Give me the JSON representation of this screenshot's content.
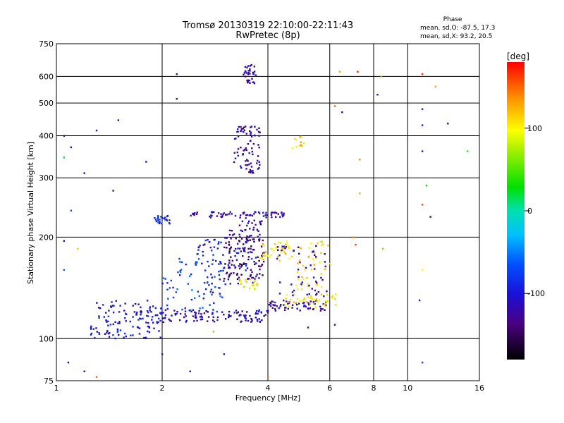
{
  "chart_data": {
    "type": "scatter",
    "title": "Tromsø 20130319 22:10:00-22:11:43",
    "subtitle": "RwPretec (8p)",
    "xlabel": "Frequency [MHz]",
    "ylabel": "Stationary phase Virtual Height [km]",
    "x_scale": "log",
    "y_scale": "log",
    "xlim": [
      1,
      16
    ],
    "ylim": [
      75,
      750
    ],
    "x_ticks": [
      1,
      2,
      4,
      6,
      8,
      10,
      16
    ],
    "x_tick_labels": [
      "1",
      "2",
      "4",
      "6",
      "8",
      "10",
      "16"
    ],
    "y_ticks": [
      75,
      100,
      200,
      300,
      400,
      500,
      600,
      750
    ],
    "y_tick_labels": [
      "75",
      "100",
      "200",
      "300",
      "400",
      "500",
      "600",
      "750"
    ],
    "grid": true,
    "stats": {
      "title": "Phase",
      "o_line": "mean, sd,O: -87.5, 17.3",
      "x_line": "mean, sd,X:  93.2, 20.5"
    },
    "colorbar": {
      "label": "[deg]",
      "range": [
        -180,
        180
      ],
      "ticks": [
        100,
        0,
        -100
      ],
      "tick_labels": [
        "100",
        "0",
        "-100"
      ]
    },
    "clusters": [
      {
        "f0": 1.25,
        "f1": 2.0,
        "h0": 100,
        "h1": 130,
        "phase": -100,
        "n": 130
      },
      {
        "f0": 2.0,
        "f1": 4.0,
        "h0": 112,
        "h1": 122,
        "phase": -115,
        "n": 110
      },
      {
        "f0": 4.0,
        "f1": 6.0,
        "h0": 121,
        "h1": 130,
        "phase": -115,
        "n": 60
      },
      {
        "f0": 4.4,
        "f1": 6.3,
        "h0": 124,
        "h1": 136,
        "phase": 105,
        "n": 40
      },
      {
        "f0": 2.0,
        "f1": 3.0,
        "h0": 120,
        "h1": 175,
        "phase": -75,
        "n": 70
      },
      {
        "f0": 2.5,
        "f1": 3.7,
        "h0": 145,
        "h1": 200,
        "phase": -95,
        "n": 80
      },
      {
        "f0": 3.0,
        "f1": 3.9,
        "h0": 150,
        "h1": 200,
        "phase": -140,
        "n": 100
      },
      {
        "f0": 3.1,
        "f1": 3.9,
        "h0": 195,
        "h1": 225,
        "phase": -125,
        "n": 40
      },
      {
        "f0": 3.8,
        "f1": 4.7,
        "h0": 170,
        "h1": 195,
        "phase": 110,
        "n": 40
      },
      {
        "f0": 3.3,
        "f1": 3.8,
        "h0": 140,
        "h1": 150,
        "phase": 100,
        "n": 20
      },
      {
        "f0": 4.8,
        "f1": 6.0,
        "h0": 140,
        "h1": 195,
        "phase": 105,
        "n": 40
      },
      {
        "f0": 4.2,
        "f1": 5.9,
        "h0": 133,
        "h1": 190,
        "phase": -120,
        "n": 50
      },
      {
        "f0": 1.9,
        "f1": 2.1,
        "h0": 218,
        "h1": 232,
        "phase": -90,
        "n": 25
      },
      {
        "f0": 2.3,
        "f1": 4.5,
        "h0": 228,
        "h1": 238,
        "phase": -115,
        "n": 70
      },
      {
        "f0": 3.2,
        "f1": 3.8,
        "h0": 310,
        "h1": 430,
        "phase": -120,
        "n": 80
      },
      {
        "f0": 3.4,
        "f1": 3.7,
        "h0": 570,
        "h1": 650,
        "phase": -120,
        "n": 35
      },
      {
        "f0": 4.6,
        "f1": 5.1,
        "h0": 360,
        "h1": 400,
        "phase": 110,
        "n": 12
      }
    ],
    "scatter_points": [
      {
        "x": 1.05,
        "y": 400,
        "phase": -110
      },
      {
        "x": 1.1,
        "y": 370,
        "phase": -110
      },
      {
        "x": 1.3,
        "y": 415,
        "phase": -120
      },
      {
        "x": 1.5,
        "y": 445,
        "phase": -120
      },
      {
        "x": 1.8,
        "y": 335,
        "phase": -120
      },
      {
        "x": 1.45,
        "y": 275,
        "phase": -110
      },
      {
        "x": 2.2,
        "y": 610,
        "phase": -130
      },
      {
        "x": 2.2,
        "y": 515,
        "phase": -130
      },
      {
        "x": 1.2,
        "y": 310,
        "phase": -110
      },
      {
        "x": 1.05,
        "y": 345,
        "phase": 20
      },
      {
        "x": 1.1,
        "y": 240,
        "phase": -60
      },
      {
        "x": 1.15,
        "y": 185,
        "phase": 120
      },
      {
        "x": 1.05,
        "y": 195,
        "phase": -100
      },
      {
        "x": 1.05,
        "y": 160,
        "phase": -60
      },
      {
        "x": 1.08,
        "y": 85,
        "phase": -110
      },
      {
        "x": 1.3,
        "y": 77,
        "phase": 150
      },
      {
        "x": 1.2,
        "y": 80,
        "phase": -120
      },
      {
        "x": 2.4,
        "y": 80,
        "phase": -120
      },
      {
        "x": 4.0,
        "y": 77,
        "phase": 150
      },
      {
        "x": 11.0,
        "y": 85,
        "phase": -80
      },
      {
        "x": 6.4,
        "y": 620,
        "phase": 130
      },
      {
        "x": 7.2,
        "y": 620,
        "phase": 170
      },
      {
        "x": 8.2,
        "y": 530,
        "phase": -110
      },
      {
        "x": 8.4,
        "y": 600,
        "phase": 60
      },
      {
        "x": 11.0,
        "y": 610,
        "phase": 170
      },
      {
        "x": 12.0,
        "y": 560,
        "phase": 130
      },
      {
        "x": 11.0,
        "y": 480,
        "phase": -90
      },
      {
        "x": 11.0,
        "y": 430,
        "phase": -110
      },
      {
        "x": 13.0,
        "y": 435,
        "phase": -120
      },
      {
        "x": 14.8,
        "y": 360,
        "phase": 40
      },
      {
        "x": 11.0,
        "y": 360,
        "phase": -110
      },
      {
        "x": 11.3,
        "y": 285,
        "phase": 30
      },
      {
        "x": 11.0,
        "y": 250,
        "phase": 160
      },
      {
        "x": 11.6,
        "y": 230,
        "phase": -150
      },
      {
        "x": 8.5,
        "y": 185,
        "phase": 60
      },
      {
        "x": 11.0,
        "y": 160,
        "phase": 100
      },
      {
        "x": 10.8,
        "y": 130,
        "phase": -110
      },
      {
        "x": 7.1,
        "y": 190,
        "phase": 160
      },
      {
        "x": 7.0,
        "y": 200,
        "phase": 140
      },
      {
        "x": 7.3,
        "y": 270,
        "phase": 130
      },
      {
        "x": 7.3,
        "y": 340,
        "phase": 140
      },
      {
        "x": 6.2,
        "y": 490,
        "phase": 150
      },
      {
        "x": 6.5,
        "y": 470,
        "phase": -120
      },
      {
        "x": 6.2,
        "y": 110,
        "phase": -110
      },
      {
        "x": 5.2,
        "y": 108,
        "phase": -120
      },
      {
        "x": 2.8,
        "y": 105,
        "phase": 130
      },
      {
        "x": 3.0,
        "y": 90,
        "phase": -110
      },
      {
        "x": 2.0,
        "y": 90,
        "phase": -110
      }
    ]
  }
}
